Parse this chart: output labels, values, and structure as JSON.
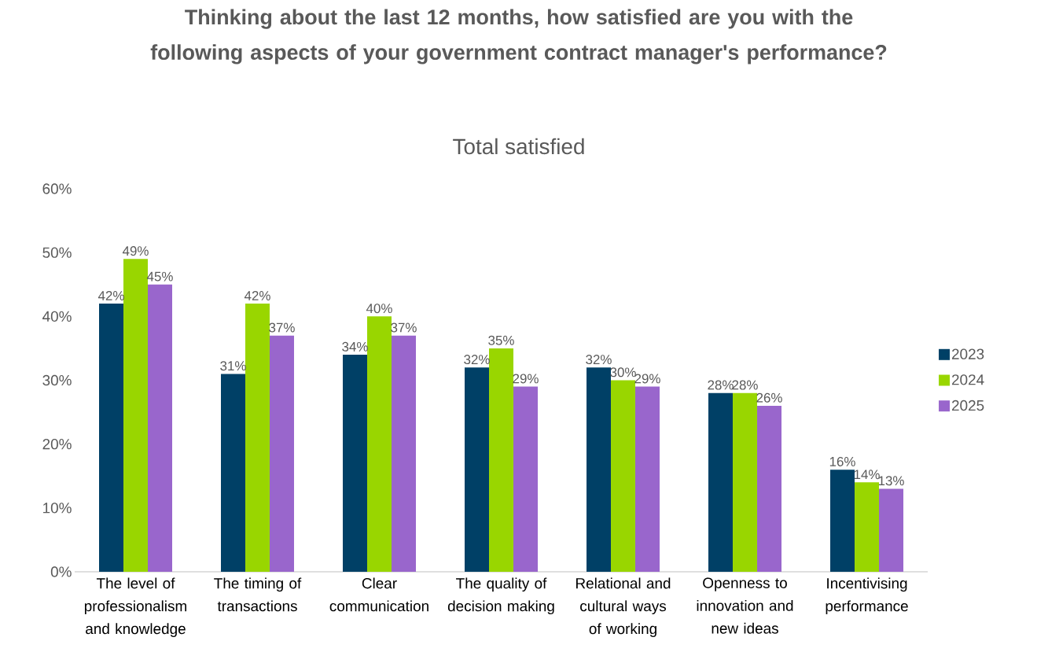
{
  "chart_data": {
    "type": "bar",
    "title": "Thinking about the last 12 months, how satisfied are you with the following aspects of your government contract manager's performance?",
    "subtitle": "Total satisfied",
    "categories": [
      "The level of professionalism and knowledge",
      "The timing of transactions",
      "Clear communication",
      "The quality of decision making",
      "Relational and cultural ways of working",
      "Openness to innovation and new ideas",
      "Incentivising performance"
    ],
    "series": [
      {
        "name": "2023",
        "color": "#004066",
        "values": [
          42,
          31,
          34,
          32,
          32,
          28,
          16
        ],
        "value_labels": [
          "42%",
          "31%",
          "34%",
          "32%",
          "32%",
          "28%",
          "16%"
        ]
      },
      {
        "name": "2024",
        "color": "#99d600",
        "values": [
          49,
          42,
          40,
          35,
          30,
          28,
          14
        ],
        "value_labels": [
          "49%",
          "42%",
          "40%",
          "35%",
          "30%",
          "28%",
          "14%"
        ]
      },
      {
        "name": "2025",
        "color": "#9966cc",
        "values": [
          45,
          37,
          37,
          29,
          29,
          26,
          13
        ],
        "value_labels": [
          "45%",
          "37%",
          "37%",
          "29%",
          "29%",
          "26%",
          "13%"
        ]
      }
    ],
    "ylim": [
      0,
      60
    ],
    "yticks": [
      {
        "value": 0,
        "label": "0%"
      },
      {
        "value": 10,
        "label": "10%"
      },
      {
        "value": 20,
        "label": "20%"
      },
      {
        "value": 30,
        "label": "30%"
      },
      {
        "value": 40,
        "label": "40%"
      },
      {
        "value": 50,
        "label": "50%"
      },
      {
        "value": 60,
        "label": "60%"
      }
    ],
    "grid": false,
    "legend": "right"
  }
}
